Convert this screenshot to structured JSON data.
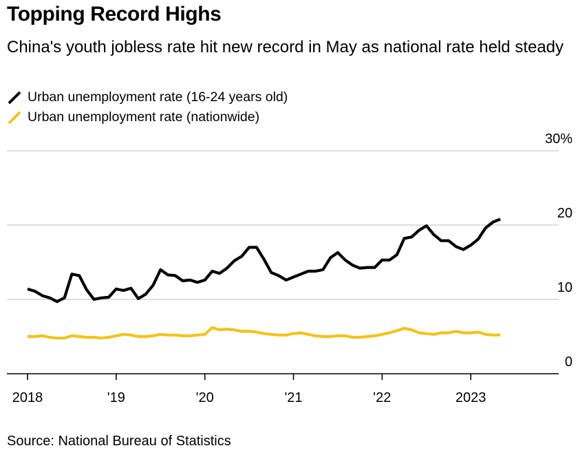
{
  "header": {
    "title": "Topping Record Highs",
    "subtitle": "China's youth jobless rate hit new record in May as national rate held steady"
  },
  "source": "Source: National Bureau of Statistics",
  "chart_data": {
    "type": "line",
    "title": "Topping Record Highs",
    "subtitle": "China's youth jobless rate hit new record in May as national rate held steady",
    "xlabel": "",
    "ylabel": "",
    "ylim": [
      0,
      30
    ],
    "y_axis_position": "right",
    "y_ticks": [
      {
        "value": 30,
        "label": "30%"
      },
      {
        "value": 20,
        "label": "20"
      },
      {
        "value": 10,
        "label": "10"
      },
      {
        "value": 0,
        "label": "0"
      }
    ],
    "x_range": [
      "2018-01",
      "2024-01"
    ],
    "x_ticks": [
      {
        "date": "2018-01",
        "label": "2018"
      },
      {
        "date": "2019-01",
        "label": "'19"
      },
      {
        "date": "2020-01",
        "label": "'20"
      },
      {
        "date": "2021-01",
        "label": "'21"
      },
      {
        "date": "2022-01",
        "label": "'22"
      },
      {
        "date": "2023-01",
        "label": "2023"
      }
    ],
    "grid": true,
    "legend_position": "top-left",
    "series": [
      {
        "name": "Urban unemployment rate (16-24 years old)",
        "color": "#000000",
        "dates": [
          "2018-01",
          "2018-02",
          "2018-03",
          "2018-04",
          "2018-05",
          "2018-06",
          "2018-07",
          "2018-08",
          "2018-09",
          "2018-10",
          "2018-11",
          "2018-12",
          "2019-01",
          "2019-02",
          "2019-03",
          "2019-04",
          "2019-05",
          "2019-06",
          "2019-07",
          "2019-08",
          "2019-09",
          "2019-10",
          "2019-11",
          "2019-12",
          "2020-01",
          "2020-02",
          "2020-03",
          "2020-04",
          "2020-05",
          "2020-06",
          "2020-07",
          "2020-08",
          "2020-09",
          "2020-10",
          "2020-11",
          "2020-12",
          "2021-01",
          "2021-02",
          "2021-03",
          "2021-04",
          "2021-05",
          "2021-06",
          "2021-07",
          "2021-08",
          "2021-09",
          "2021-10",
          "2021-11",
          "2021-12",
          "2022-01",
          "2022-02",
          "2022-03",
          "2022-04",
          "2022-05",
          "2022-06",
          "2022-07",
          "2022-08",
          "2022-09",
          "2022-10",
          "2022-11",
          "2022-12",
          "2023-01",
          "2023-02",
          "2023-03",
          "2023-04",
          "2023-05"
        ],
        "values": [
          11.4,
          11.1,
          10.5,
          10.2,
          9.7,
          10.2,
          13.4,
          13.2,
          11.3,
          10.0,
          10.2,
          10.3,
          11.4,
          11.2,
          11.5,
          10.1,
          10.7,
          11.9,
          14.0,
          13.3,
          13.2,
          12.5,
          12.6,
          12.3,
          12.6,
          13.8,
          13.5,
          14.2,
          15.2,
          15.8,
          17.0,
          17.0,
          15.4,
          13.6,
          13.2,
          12.6,
          13.0,
          13.4,
          13.8,
          13.8,
          14.0,
          15.6,
          16.3,
          15.3,
          14.6,
          14.2,
          14.3,
          14.3,
          15.3,
          15.3,
          16.0,
          18.2,
          18.4,
          19.3,
          19.9,
          18.7,
          17.9,
          17.9,
          17.1,
          16.7,
          17.3,
          18.1,
          19.6,
          20.4,
          20.8
        ]
      },
      {
        "name": "Urban unemployment rate (nationwide)",
        "color": "#f2c31e",
        "dates": [
          "2018-01",
          "2018-02",
          "2018-03",
          "2018-04",
          "2018-05",
          "2018-06",
          "2018-07",
          "2018-08",
          "2018-09",
          "2018-10",
          "2018-11",
          "2018-12",
          "2019-01",
          "2019-02",
          "2019-03",
          "2019-04",
          "2019-05",
          "2019-06",
          "2019-07",
          "2019-08",
          "2019-09",
          "2019-10",
          "2019-11",
          "2019-12",
          "2020-01",
          "2020-02",
          "2020-03",
          "2020-04",
          "2020-05",
          "2020-06",
          "2020-07",
          "2020-08",
          "2020-09",
          "2020-10",
          "2020-11",
          "2020-12",
          "2021-01",
          "2021-02",
          "2021-03",
          "2021-04",
          "2021-05",
          "2021-06",
          "2021-07",
          "2021-08",
          "2021-09",
          "2021-10",
          "2021-11",
          "2021-12",
          "2022-01",
          "2022-02",
          "2022-03",
          "2022-04",
          "2022-05",
          "2022-06",
          "2022-07",
          "2022-08",
          "2022-09",
          "2022-10",
          "2022-11",
          "2022-12",
          "2023-01",
          "2023-02",
          "2023-03",
          "2023-04",
          "2023-05"
        ],
        "values": [
          5.0,
          5.0,
          5.1,
          4.9,
          4.8,
          4.8,
          5.1,
          5.0,
          4.9,
          4.9,
          4.8,
          4.9,
          5.1,
          5.3,
          5.2,
          5.0,
          5.0,
          5.1,
          5.3,
          5.2,
          5.2,
          5.1,
          5.1,
          5.2,
          5.3,
          6.2,
          5.9,
          6.0,
          5.9,
          5.7,
          5.7,
          5.6,
          5.4,
          5.3,
          5.2,
          5.2,
          5.4,
          5.5,
          5.3,
          5.1,
          5.0,
          5.0,
          5.1,
          5.1,
          4.9,
          4.9,
          5.0,
          5.1,
          5.3,
          5.5,
          5.8,
          6.1,
          5.9,
          5.5,
          5.4,
          5.3,
          5.5,
          5.5,
          5.7,
          5.5,
          5.5,
          5.6,
          5.3,
          5.2,
          5.2
        ]
      }
    ]
  }
}
